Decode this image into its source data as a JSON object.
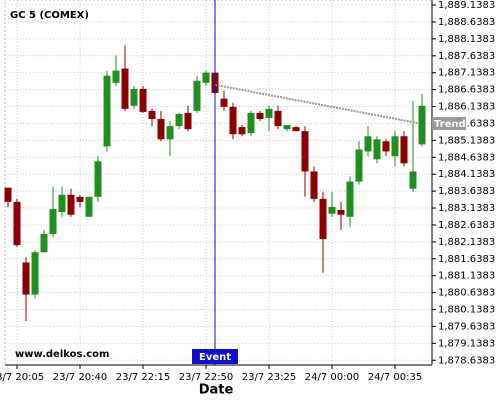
{
  "chart_data": {
    "type": "candlestick",
    "title": "GC 5 (COMEX)",
    "watermark": "www.delkos.com",
    "x_label": "Date",
    "categories": [
      null,
      "23/7 20:05",
      null,
      null,
      null,
      null,
      null,
      null,
      "23/7 20:40",
      null,
      null,
      null,
      null,
      null,
      null,
      "23/7 22:15",
      null,
      null,
      null,
      null,
      null,
      null,
      "23/7 22:50",
      null,
      null,
      null,
      null,
      null,
      null,
      "23/7 23:25",
      null,
      null,
      null,
      null,
      null,
      null,
      "24/7 00:00",
      null,
      null,
      null,
      null,
      null,
      null,
      "24/7 00:35",
      null,
      null,
      null
    ],
    "open": [
      1883.74,
      1883.32,
      1881.53,
      1880.58,
      1881.83,
      1882.37,
      1883.02,
      1883.53,
      1883.47,
      1882.88,
      1883.47,
      1884.96,
      1886.84,
      1887.26,
      1886.16,
      1886.66,
      1886.01,
      1885.77,
      1885.17,
      1885.56,
      1885.95,
      1886.01,
      1886.84,
      1887.14,
      1886.37,
      1886.13,
      1885.53,
      1885.35,
      1885.95,
      1885.8,
      1886.01,
      1885.47,
      1885.53,
      1885.41,
      1884.22,
      1883.41,
      1882.97,
      1883.08,
      1882.88,
      1883.92,
      1884.81,
      1884.58,
      1885.11,
      1884.67,
      1885.26,
      1883.71,
      1885.02
    ],
    "high": [
      1883.74,
      1883.41,
      1881.68,
      1881.89,
      1882.49,
      1883.77,
      1883.77,
      1883.71,
      1883.53,
      1883.47,
      1884.67,
      1887.2,
      1887.65,
      1887.95,
      1886.75,
      1886.75,
      1886.07,
      1886.01,
      1885.71,
      1885.95,
      1886.16,
      1887.05,
      1887.2,
      1887.26,
      1886.6,
      1886.25,
      1885.59,
      1886.01,
      1886.01,
      1886.16,
      1886.16,
      1885.59,
      1885.56,
      1885.56,
      1884.37,
      1883.62,
      1883.62,
      1883.32,
      1884.07,
      1885.11,
      1885.56,
      1885.26,
      1885.17,
      1885.41,
      1885.41,
      1886.31,
      1886.51
    ],
    "low": [
      1883.17,
      1881.98,
      1879.8,
      1880.46,
      1881.83,
      1882.28,
      1882.88,
      1882.88,
      1883.17,
      1882.88,
      1883.32,
      1884.81,
      1886.75,
      1886.01,
      1886.07,
      1885.95,
      1885.56,
      1885.11,
      1884.67,
      1885.47,
      1885.41,
      1885.95,
      1886.75,
      1886.46,
      1886.01,
      1885.17,
      1885.26,
      1885.26,
      1885.71,
      1885.41,
      1885.47,
      1885.41,
      1885.41,
      1883.47,
      1883.32,
      1881.23,
      1882.88,
      1882.49,
      1882.58,
      1883.83,
      1884.67,
      1884.46,
      1884.67,
      1884.37,
      1884.37,
      1883.62,
      1884.96
    ],
    "close": [
      1883.32,
      1882.04,
      1880.58,
      1881.83,
      1882.37,
      1883.11,
      1883.53,
      1882.94,
      1883.32,
      1883.47,
      1884.52,
      1887.05,
      1887.2,
      1886.07,
      1886.66,
      1885.98,
      1885.77,
      1885.17,
      1885.56,
      1885.92,
      1885.47,
      1886.9,
      1887.14,
      1886.54,
      1886.13,
      1885.32,
      1885.32,
      1885.95,
      1885.77,
      1886.07,
      1885.56,
      1885.59,
      1885.41,
      1884.22,
      1883.41,
      1882.22,
      1883.17,
      1882.94,
      1883.92,
      1884.87,
      1885.26,
      1885.17,
      1884.81,
      1885.26,
      1884.46,
      1884.22,
      1886.16
    ],
    "up_color": "#1f8f1f",
    "down_color": "#8b0000",
    "ylim": [
      1878.4984,
      1889.2875
    ],
    "yticks": [
      {
        "value": 1878.6383,
        "label": "1,878.6383"
      },
      {
        "value": 1879.1383,
        "label": "1,879.1383"
      },
      {
        "value": 1879.6383,
        "label": "1,879.6383"
      },
      {
        "value": 1880.1383,
        "label": "1,880.1383"
      },
      {
        "value": 1880.6383,
        "label": "1,880.6383"
      },
      {
        "value": 1881.1383,
        "label": "1,881.1383"
      },
      {
        "value": 1881.6383,
        "label": "1,881.6383"
      },
      {
        "value": 1882.1383,
        "label": "1,882.1383"
      },
      {
        "value": 1882.6383,
        "label": "1,882.6383"
      },
      {
        "value": 1883.1383,
        "label": "1,883.1383"
      },
      {
        "value": 1883.6383,
        "label": "1,883.6383"
      },
      {
        "value": 1884.1383,
        "label": "1,884.1383"
      },
      {
        "value": 1884.6383,
        "label": "1,884.6383"
      },
      {
        "value": 1885.1383,
        "label": "1,885.1383"
      },
      {
        "value": 1885.6383,
        "label": "1,885.6383"
      },
      {
        "value": 1886.1383,
        "label": "1,886.1383"
      },
      {
        "value": 1886.6383,
        "label": "1,886.6383"
      },
      {
        "value": 1887.1383,
        "label": "1,887.1383"
      },
      {
        "value": 1887.6383,
        "label": "1,887.6383"
      },
      {
        "value": 1888.1383,
        "label": "1,888.1383"
      },
      {
        "value": 1888.6383,
        "label": "1,888.6383"
      },
      {
        "value": 1889.1383,
        "label": "1,889.1383"
      }
    ],
    "grid": true,
    "trend": {
      "label": "Trend",
      "x": [
        23,
        46
      ],
      "values": [
        1886.78,
        1885.65
      ],
      "color": "#999999"
    },
    "event": {
      "label": "Event",
      "x": 23,
      "color": "#1010cc"
    }
  }
}
